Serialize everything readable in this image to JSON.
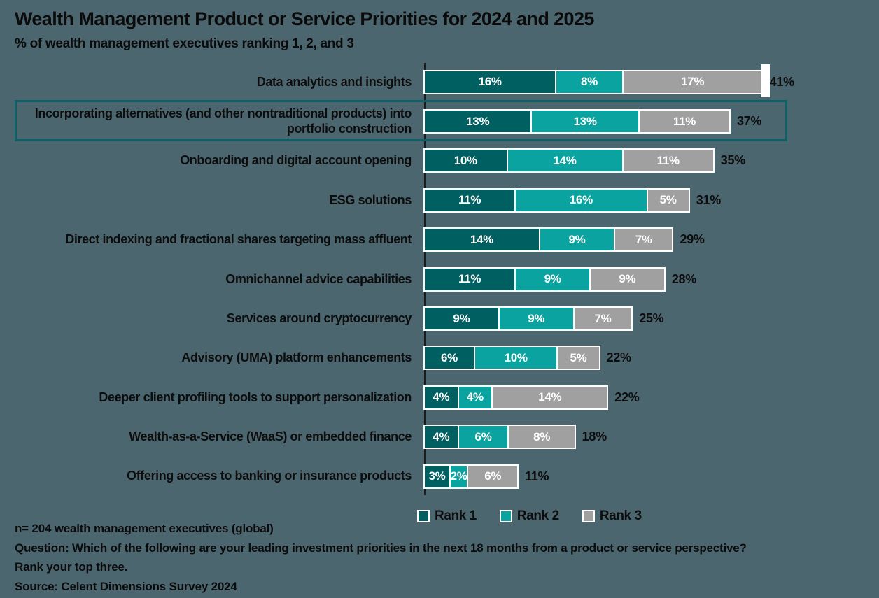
{
  "title": "Wealth Management Product or Service Priorities for 2024 and 2025",
  "subtitle": "% of wealth management executives ranking 1, 2, and 3",
  "colors": {
    "background": "#4c6670",
    "rank1": "#005f60",
    "rank2": "#0ba3a0",
    "rank3": "#a0a0a0",
    "highlight_border": "#0d6066",
    "axis": "#1c1c1c",
    "series": [
      "#005f60",
      "#0ba3a0",
      "#a0a0a0"
    ]
  },
  "chart_data": {
    "type": "bar",
    "stacked": true,
    "orientation": "horizontal",
    "title": "Wealth Management Product or Service Priorities for 2024 and 2025",
    "xlabel": "",
    "ylabel": "",
    "xlim": [
      0,
      45
    ],
    "grid": false,
    "legend_position": "bottom",
    "categories": [
      "Data analytics and insights",
      "Incorporating alternatives (and other nontraditional products) into portfolio construction",
      "Onboarding and digital account opening",
      "ESG solutions",
      "Direct indexing and fractional shares targeting mass affluent",
      "Omnichannel advice capabilities",
      "Services around cryptocurrency",
      "Advisory (UMA) platform enhancements",
      "Deeper client profiling tools to support personalization",
      "Wealth-as-a-Service (WaaS) or embedded finance",
      "Offering access to banking or insurance products"
    ],
    "series": [
      {
        "name": "Rank 1",
        "values": [
          16,
          13,
          10,
          11,
          14,
          11,
          9,
          6,
          4,
          4,
          3
        ]
      },
      {
        "name": "Rank 2",
        "values": [
          8,
          13,
          14,
          16,
          9,
          9,
          9,
          10,
          4,
          6,
          2
        ]
      },
      {
        "name": "Rank 3",
        "values": [
          17,
          11,
          11,
          5,
          7,
          9,
          7,
          5,
          14,
          8,
          6
        ]
      }
    ],
    "totals": [
      "41%",
      "37%",
      "35%",
      "31%",
      "29%",
      "28%",
      "25%",
      "22%",
      "22%",
      "18%",
      "11%"
    ],
    "highlighted_category_index": 1
  },
  "legend": [
    {
      "label": "Rank 1",
      "color": "#005f60"
    },
    {
      "label": "Rank 2",
      "color": "#0ba3a0"
    },
    {
      "label": "Rank 3",
      "color": "#a0a0a0"
    }
  ],
  "footer": {
    "line1": "n= 204 wealth management executives (global)",
    "line2": "Question: Which of the following are your leading investment priorities in the next 18 months from a product or service perspective?",
    "line3": "Rank your top three.",
    "line4": "Source: Celent Dimensions Survey 2024"
  }
}
